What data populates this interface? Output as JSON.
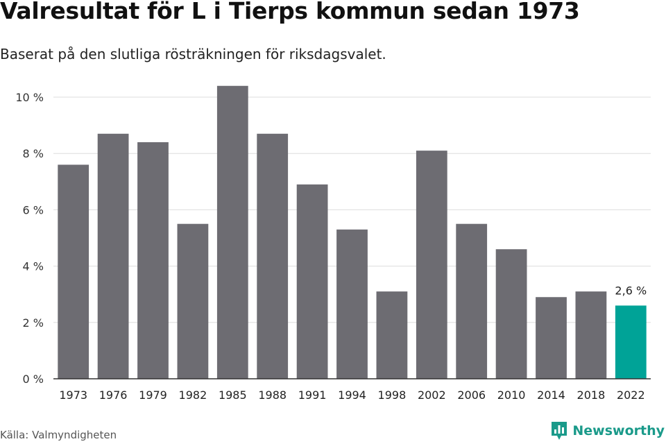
{
  "header": {
    "title": "Valresultat för L i Tierps kommun sedan 1973",
    "subtitle": "Baserat på den slutliga rösträkningen för riksdagsvalet."
  },
  "footer": {
    "source": "Källa: Valmyndigheten",
    "brand": "Newsworthy",
    "brand_icon": "newsworthy-logo-icon"
  },
  "colors": {
    "bar": "#6d6c72",
    "highlight": "#00a397",
    "grid": "#dddddd",
    "axis": "#333333",
    "brand": "#1a9a8a"
  },
  "chart_data": {
    "type": "bar",
    "title": "",
    "xlabel": "",
    "ylabel": "",
    "categories": [
      "1973",
      "1976",
      "1979",
      "1982",
      "1985",
      "1988",
      "1991",
      "1994",
      "1998",
      "2002",
      "2006",
      "2010",
      "2014",
      "2018",
      "2022"
    ],
    "values": [
      7.6,
      8.7,
      8.4,
      5.5,
      10.4,
      8.7,
      6.9,
      5.3,
      3.1,
      8.1,
      5.5,
      4.6,
      2.9,
      3.1,
      2.6
    ],
    "ylim": [
      0,
      10
    ],
    "yticks": [
      0,
      2,
      4,
      6,
      8,
      10
    ],
    "ytick_labels": [
      "0 %",
      "2 %",
      "4 %",
      "6 %",
      "8 %",
      "10 %"
    ],
    "highlight_index": 14,
    "annotations": [
      {
        "index": 14,
        "label": "2,6 %"
      }
    ],
    "grid": true
  }
}
